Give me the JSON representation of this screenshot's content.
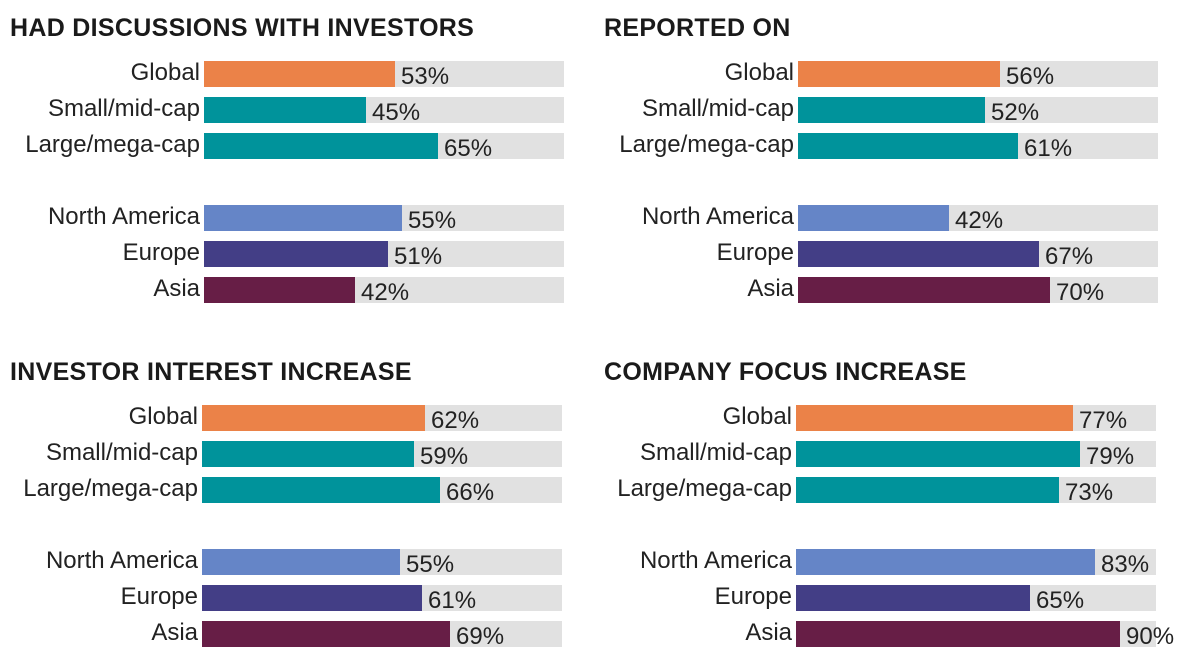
{
  "colors": {
    "Global": "#eb8248",
    "Small/mid-cap": "#00939b",
    "Large/mega-cap": "#00939b",
    "North America": "#6585c7",
    "Europe": "#433e86",
    "Asia": "#671e46"
  },
  "chart_data": [
    {
      "type": "bar",
      "orientation": "horizontal",
      "title": "HAD DISCUSSIONS WITH INVESTORS",
      "categories": [
        "Global",
        "Small/mid-cap",
        "Large/mega-cap",
        "North America",
        "Europe",
        "Asia"
      ],
      "values": [
        53,
        45,
        65,
        55,
        51,
        42
      ],
      "labels": [
        "53%",
        "45%",
        "65%",
        "55%",
        "51%",
        "42%"
      ],
      "xlim": [
        0,
        100
      ]
    },
    {
      "type": "bar",
      "orientation": "horizontal",
      "title": "REPORTED ON",
      "categories": [
        "Global",
        "Small/mid-cap",
        "Large/mega-cap",
        "North America",
        "Europe",
        "Asia"
      ],
      "values": [
        56,
        52,
        61,
        42,
        67,
        70
      ],
      "labels": [
        "56%",
        "52%",
        "61%",
        "42%",
        "67%",
        "70%"
      ],
      "xlim": [
        0,
        100
      ]
    },
    {
      "type": "bar",
      "orientation": "horizontal",
      "title": "INVESTOR INTEREST INCREASE",
      "categories": [
        "Global",
        "Small/mid-cap",
        "Large/mega-cap",
        "North America",
        "Europe",
        "Asia"
      ],
      "values": [
        62,
        59,
        66,
        55,
        61,
        69
      ],
      "labels": [
        "62%",
        "59%",
        "66%",
        "55%",
        "61%",
        "69%"
      ],
      "xlim": [
        0,
        100
      ]
    },
    {
      "type": "bar",
      "orientation": "horizontal",
      "title": "COMPANY FOCUS INCREASE",
      "categories": [
        "Global",
        "Small/mid-cap",
        "Large/mega-cap",
        "North America",
        "Europe",
        "Asia"
      ],
      "values": [
        77,
        79,
        73,
        83,
        65,
        90
      ],
      "labels": [
        "77%",
        "79%",
        "73%",
        "83%",
        "65%",
        "90%"
      ],
      "xlim": [
        0,
        100
      ]
    }
  ]
}
